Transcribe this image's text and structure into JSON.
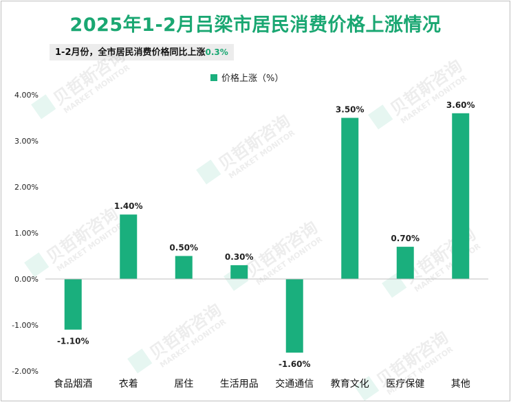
{
  "title": "2025年1-2月吕梁市居民消费价格上涨情况",
  "subtitle": {
    "text": "1-2月份，全市居民消费价格同比上涨",
    "highlight": "0.3%"
  },
  "watermark": {
    "text_cn": "贝哲斯咨询",
    "text_en": "MARKET MONITOR"
  },
  "colors": {
    "bar": "#1aaf7d",
    "title": "#1aa772",
    "axis": "#bfbfbf"
  },
  "chart_data": {
    "type": "bar",
    "title": "2025年1-2月吕梁市居民消费价格上涨情况",
    "legend": {
      "label": "价格上涨（%）",
      "position": "top-center"
    },
    "categories": [
      "食品烟酒",
      "衣着",
      "居住",
      "生活用品",
      "交通通信",
      "教育文化",
      "医疗保健",
      "其他"
    ],
    "values": [
      -1.1,
      1.4,
      0.5,
      0.3,
      -1.6,
      3.5,
      0.7,
      3.6
    ],
    "value_labels": [
      "-1.10%",
      "1.40%",
      "0.50%",
      "0.30%",
      "-1.60%",
      "3.50%",
      "0.70%",
      "3.60%"
    ],
    "yticks": [
      4.0,
      3.0,
      2.0,
      1.0,
      0.0,
      -1.0,
      -2.0
    ],
    "ytick_labels": [
      "4.00%",
      "3.00%",
      "2.00%",
      "1.00%",
      "0.00%",
      "-1.00%",
      "-2.00%"
    ],
    "ylim": [
      -2.0,
      4.0
    ],
    "xlabel": "",
    "ylabel": "",
    "grid": false
  }
}
